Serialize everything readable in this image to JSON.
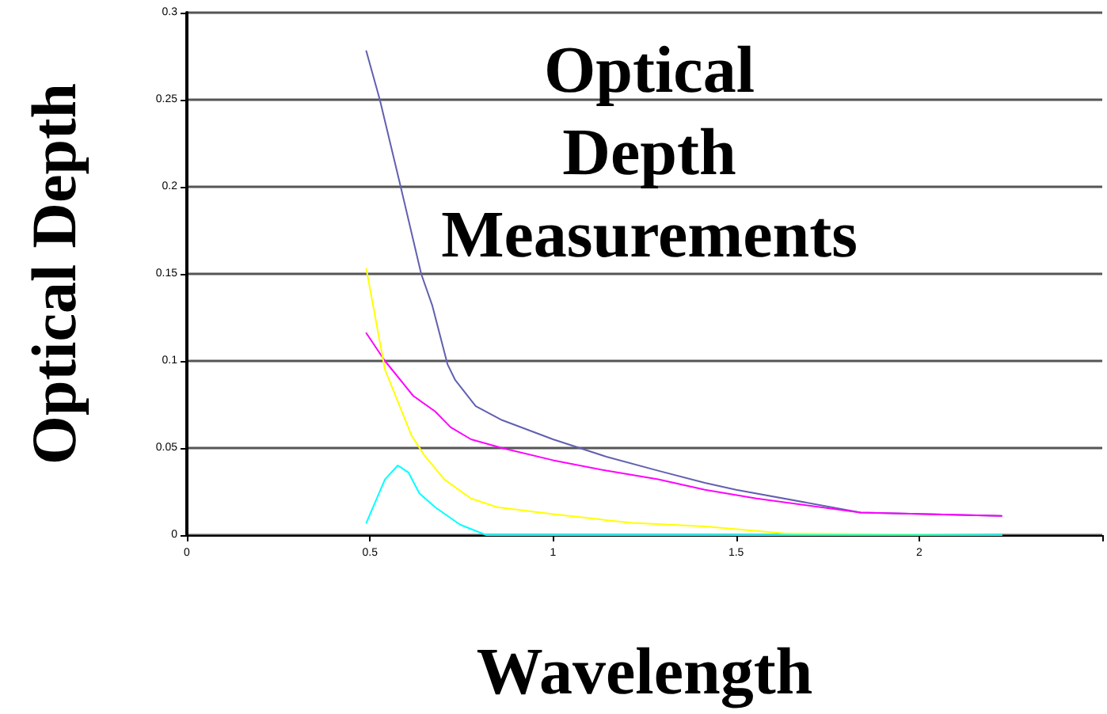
{
  "chart_data": {
    "type": "line",
    "title": "Optical Depth Measurements",
    "xlabel": "Wavelength",
    "ylabel": "Optical Depth",
    "xlim": [
      0,
      2.5
    ],
    "xticks": [
      0,
      0.5,
      1,
      1.5,
      2,
      {
        "value": 2.5,
        "label": null
      }
    ],
    "ylim": [
      0,
      0.3
    ],
    "yticks": [
      0,
      0.05,
      0.1,
      0.15,
      0.2,
      0.25,
      0.3
    ],
    "grid": "y",
    "marker": "none",
    "line_style": "solid",
    "series": [
      {
        "color": "#6060b0",
        "x": [
          0.49,
          0.527,
          0.584,
          0.64,
          0.67,
          0.712,
          0.733,
          0.789,
          0.861,
          1.0,
          1.146,
          1.287,
          1.415,
          1.5,
          1.84,
          2.225
        ],
        "values": [
          0.278,
          0.25,
          0.2,
          0.15,
          0.132,
          0.098,
          0.089,
          0.074,
          0.066,
          0.055,
          0.045,
          0.037,
          0.03,
          0.026,
          0.013,
          0.011
        ]
      },
      {
        "color": "#ff00ff",
        "x": [
          0.49,
          0.541,
          0.618,
          0.678,
          0.72,
          0.776,
          0.861,
          1.0,
          1.146,
          1.287,
          1.415,
          1.556,
          1.84,
          2.225
        ],
        "values": [
          0.116,
          0.1,
          0.08,
          0.071,
          0.062,
          0.055,
          0.05,
          0.043,
          0.037,
          0.032,
          0.026,
          0.021,
          0.013,
          0.011
        ]
      },
      {
        "color": "#ffff00",
        "x": [
          0.49,
          0.541,
          0.614,
          0.648,
          0.703,
          0.776,
          0.848,
          1.0,
          1.215,
          1.415,
          1.63,
          2.225
        ],
        "values": [
          0.153,
          0.095,
          0.057,
          0.046,
          0.032,
          0.021,
          0.016,
          0.012,
          0.007,
          0.005,
          0.001,
          0.0
        ]
      },
      {
        "color": "#00ffff",
        "x": [
          0.49,
          0.541,
          0.576,
          0.605,
          0.635,
          0.678,
          0.746,
          0.818,
          1.5,
          2.225
        ],
        "values": [
          0.007,
          0.032,
          0.04,
          0.036,
          0.024,
          0.016,
          0.006,
          0.0,
          0.0,
          0.0
        ]
      }
    ]
  }
}
